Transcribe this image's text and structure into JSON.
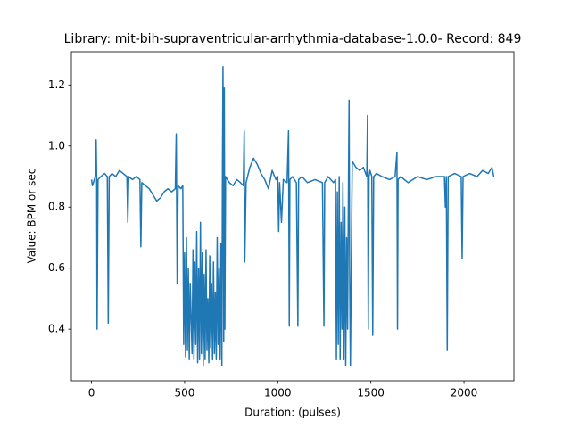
{
  "chart_data": {
    "type": "line",
    "title": "Library: mit-bih-supraventricular-arrhythmia-database-1.0.0- Record: 849",
    "xlabel": "Duration: (pulses)",
    "ylabel": "Value: BPM or sec",
    "xlim": [
      -108,
      2268
    ],
    "ylim": [
      0.231,
      1.309
    ],
    "xticks": [
      0,
      500,
      1000,
      1500,
      2000
    ],
    "yticks": [
      0.4,
      0.6,
      0.8,
      {
        "value": 1.0,
        "label": "1.0"
      },
      1.2
    ],
    "grid": false,
    "x": [
      0,
      5,
      10,
      20,
      25,
      28,
      30,
      35,
      50,
      70,
      85,
      90,
      95,
      110,
      130,
      150,
      170,
      190,
      195,
      200,
      220,
      240,
      260,
      265,
      270,
      290,
      310,
      330,
      350,
      370,
      390,
      410,
      430,
      450,
      455,
      460,
      465,
      480,
      490,
      495,
      500,
      505,
      510,
      515,
      520,
      525,
      530,
      540,
      545,
      550,
      555,
      560,
      565,
      570,
      575,
      580,
      585,
      590,
      595,
      600,
      605,
      610,
      615,
      620,
      625,
      630,
      635,
      640,
      645,
      650,
      655,
      660,
      665,
      670,
      675,
      680,
      685,
      690,
      695,
      700,
      703,
      706,
      710,
      713,
      716,
      720,
      740,
      760,
      780,
      800,
      815,
      820,
      823,
      830,
      850,
      870,
      890,
      910,
      930,
      950,
      970,
      990,
      1000,
      1005,
      1010,
      1020,
      1030,
      1050,
      1058,
      1062,
      1065,
      1080,
      1100,
      1108,
      1112,
      1130,
      1160,
      1200,
      1240,
      1248,
      1252,
      1270,
      1300,
      1310,
      1315,
      1320,
      1325,
      1330,
      1335,
      1340,
      1345,
      1350,
      1355,
      1360,
      1365,
      1370,
      1375,
      1380,
      1383,
      1386,
      1390,
      1400,
      1420,
      1440,
      1460,
      1478,
      1482,
      1486,
      1490,
      1495,
      1505,
      1510,
      1515,
      1530,
      1560,
      1600,
      1630,
      1640,
      1643,
      1646,
      1660,
      1700,
      1750,
      1800,
      1850,
      1895,
      1900,
      1905,
      1910,
      1915,
      1950,
      1985,
      1990,
      1995,
      2030,
      2070,
      2100,
      2130,
      2150,
      2160
    ],
    "series": [
      {
        "color": "#1f77b4",
        "values": [
          0.89,
          0.87,
          0.88,
          0.9,
          1.02,
          0.88,
          0.4,
          0.89,
          0.9,
          0.91,
          0.9,
          0.42,
          0.9,
          0.91,
          0.9,
          0.92,
          0.91,
          0.9,
          0.75,
          0.9,
          0.89,
          0.9,
          0.89,
          0.67,
          0.88,
          0.87,
          0.86,
          0.84,
          0.82,
          0.83,
          0.85,
          0.86,
          0.85,
          0.86,
          1.04,
          0.55,
          0.87,
          0.86,
          0.87,
          0.35,
          0.65,
          0.31,
          0.7,
          0.33,
          0.6,
          0.3,
          0.55,
          0.32,
          0.66,
          0.3,
          0.62,
          0.35,
          0.72,
          0.29,
          0.6,
          0.3,
          0.75,
          0.32,
          0.65,
          0.28,
          0.58,
          0.3,
          0.66,
          0.33,
          0.5,
          0.29,
          0.64,
          0.34,
          0.55,
          0.3,
          0.62,
          0.32,
          0.52,
          0.3,
          0.7,
          0.35,
          0.6,
          0.3,
          0.68,
          0.28,
          0.9,
          1.26,
          0.36,
          1.19,
          0.4,
          0.9,
          0.88,
          0.87,
          0.89,
          0.88,
          0.87,
          1.05,
          0.62,
          0.88,
          0.93,
          0.96,
          0.94,
          0.91,
          0.89,
          0.86,
          0.92,
          0.89,
          0.9,
          0.72,
          0.88,
          0.75,
          0.89,
          0.88,
          1.05,
          0.41,
          0.89,
          0.9,
          0.88,
          0.41,
          0.89,
          0.9,
          0.88,
          0.89,
          0.88,
          0.41,
          0.88,
          0.9,
          0.88,
          0.89,
          0.3,
          0.85,
          0.35,
          0.9,
          0.3,
          0.75,
          0.4,
          0.88,
          0.3,
          0.8,
          0.28,
          0.7,
          0.4,
          0.9,
          1.15,
          0.6,
          0.28,
          0.95,
          0.93,
          0.92,
          0.93,
          0.9,
          1.1,
          0.4,
          0.9,
          0.92,
          0.9,
          0.38,
          0.9,
          0.91,
          0.9,
          0.89,
          0.9,
          0.98,
          0.4,
          0.89,
          0.9,
          0.88,
          0.9,
          0.89,
          0.9,
          0.9,
          0.8,
          0.9,
          0.33,
          0.9,
          0.91,
          0.9,
          0.63,
          0.9,
          0.91,
          0.9,
          0.92,
          0.91,
          0.93,
          0.9
        ]
      }
    ]
  }
}
